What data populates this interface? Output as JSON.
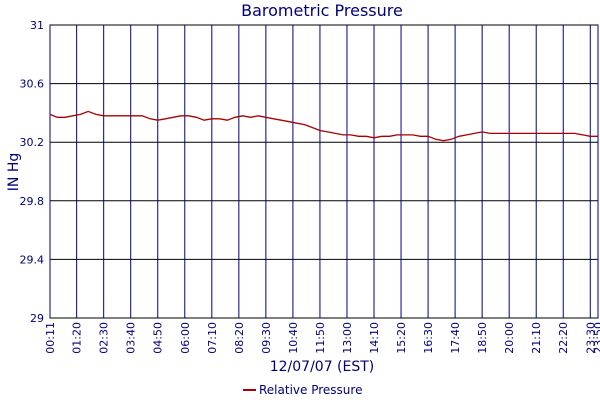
{
  "chart_data": {
    "type": "line",
    "title": "Barometric Pressure",
    "xlabel": "12/07/07 (EST)",
    "ylabel": "IN Hg",
    "ylim": [
      29,
      31
    ],
    "yticks": [
      "29",
      "29.4",
      "29.8",
      "30.2",
      "30.6",
      "31"
    ],
    "xticks": [
      "00:11",
      "01:20",
      "02:30",
      "03:40",
      "04:50",
      "06:00",
      "07:10",
      "08:20",
      "09:30",
      "10:40",
      "11:50",
      "13:00",
      "14:10",
      "15:20",
      "16:30",
      "17:40",
      "18:50",
      "20:00",
      "21:10",
      "22:20",
      "23:30",
      "23:50"
    ],
    "grid": true,
    "legend_position": "bottom",
    "series": [
      {
        "name": "Relative Pressure",
        "color": "#aa0000",
        "x": [
          "00:11",
          "00:30",
          "00:50",
          "01:10",
          "01:30",
          "01:50",
          "02:10",
          "02:30",
          "02:50",
          "03:10",
          "03:30",
          "03:50",
          "04:10",
          "04:30",
          "04:50",
          "05:10",
          "05:30",
          "05:50",
          "06:10",
          "06:30",
          "06:50",
          "07:10",
          "07:30",
          "07:50",
          "08:10",
          "08:30",
          "08:50",
          "09:10",
          "09:30",
          "09:50",
          "10:10",
          "10:30",
          "10:50",
          "11:10",
          "11:30",
          "11:50",
          "12:10",
          "12:30",
          "12:50",
          "13:10",
          "13:30",
          "13:50",
          "14:10",
          "14:30",
          "14:50",
          "15:10",
          "15:30",
          "15:50",
          "16:10",
          "16:30",
          "16:50",
          "17:10",
          "17:30",
          "17:50",
          "18:10",
          "18:30",
          "18:50",
          "19:10",
          "19:30",
          "19:50",
          "20:10",
          "20:30",
          "20:50",
          "21:10",
          "21:30",
          "21:50",
          "22:10",
          "22:30",
          "22:50",
          "23:10",
          "23:30",
          "23:50"
        ],
        "values": [
          30.39,
          30.37,
          30.37,
          30.38,
          30.39,
          30.41,
          30.39,
          30.38,
          30.38,
          30.38,
          30.38,
          30.38,
          30.38,
          30.36,
          30.35,
          30.36,
          30.37,
          30.38,
          30.38,
          30.37,
          30.35,
          30.36,
          30.36,
          30.35,
          30.37,
          30.38,
          30.37,
          30.38,
          30.37,
          30.36,
          30.35,
          30.34,
          30.33,
          30.32,
          30.3,
          30.28,
          30.27,
          30.26,
          30.25,
          30.25,
          30.24,
          30.24,
          30.23,
          30.24,
          30.24,
          30.25,
          30.25,
          30.25,
          30.24,
          30.24,
          30.22,
          30.21,
          30.22,
          30.24,
          30.25,
          30.26,
          30.27,
          30.26,
          30.26,
          30.26,
          30.26,
          30.26,
          30.26,
          30.26,
          30.26,
          30.26,
          30.26,
          30.26,
          30.26,
          30.25,
          30.24,
          30.24
        ]
      }
    ]
  }
}
